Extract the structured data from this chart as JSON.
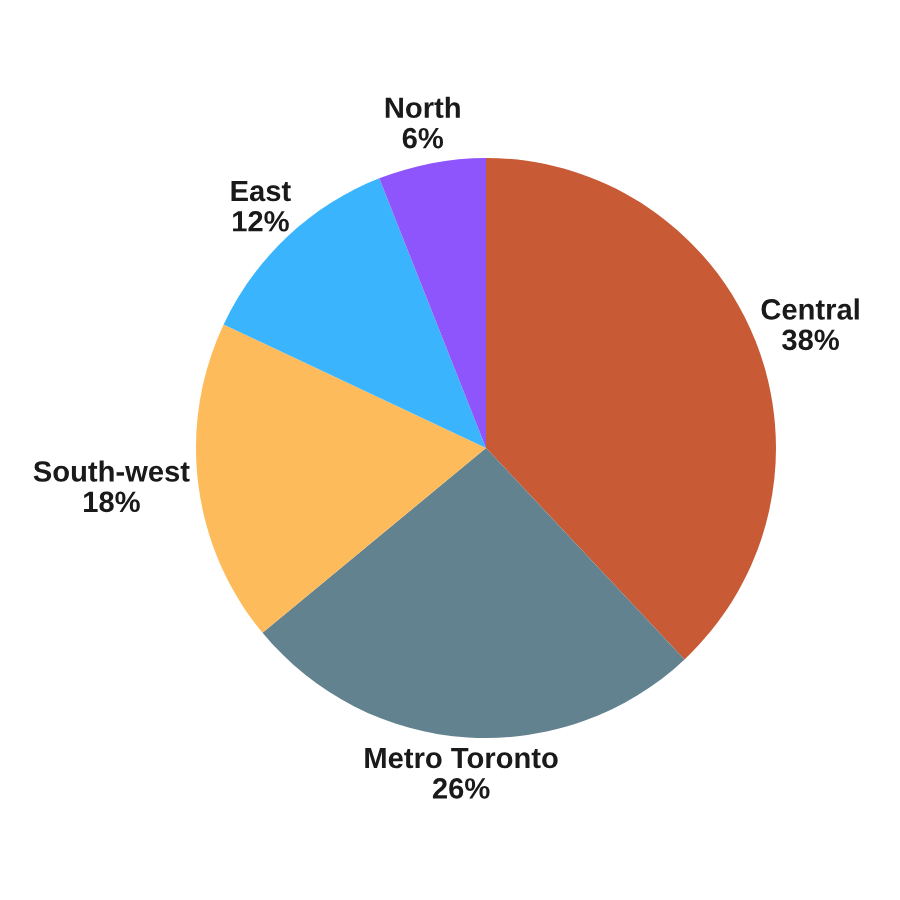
{
  "chart_data": {
    "type": "pie",
    "categories": [
      "Central",
      "Metro Toronto",
      "South-west",
      "East",
      "North"
    ],
    "values": [
      38,
      26,
      18,
      12,
      6
    ],
    "value_labels": [
      "38%",
      "26%",
      "18%",
      "12%",
      "6%"
    ],
    "colors": [
      "#c85a35",
      "#62828f",
      "#fdbb5b",
      "#3ab5fd",
      "#8f55fd"
    ]
  }
}
